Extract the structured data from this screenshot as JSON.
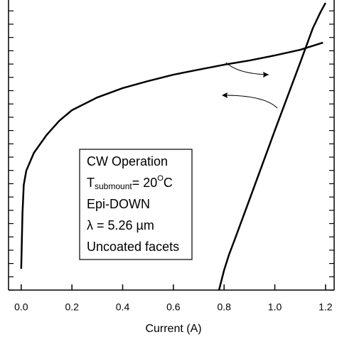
{
  "chart_data": {
    "type": "line",
    "x_label": "Current (A)",
    "xlim": [
      -0.05,
      1.234
    ],
    "xticks": [
      {
        "value": 0,
        "label": "0.0"
      },
      0.2,
      0.4,
      0.6,
      0.8,
      {
        "value": 1,
        "label": "1.0"
      },
      1.2
    ],
    "ylim": [
      0,
      22
    ],
    "yticks": [
      0,
      1,
      2,
      3,
      4,
      5,
      6,
      7,
      8,
      9,
      10,
      11,
      12,
      13,
      14,
      15,
      16,
      17,
      18,
      19,
      20,
      21
    ],
    "y2lim": [
      0,
      22
    ],
    "y2ticks": [
      0,
      1,
      2,
      3,
      4,
      5,
      6,
      7,
      8,
      9,
      10,
      11,
      12,
      13,
      14,
      15,
      16,
      17,
      18,
      19,
      20,
      21
    ],
    "series": [
      {
        "color": "#000000",
        "x": [
          0.0,
          0.005,
          0.01,
          0.02,
          0.05,
          0.1,
          0.15,
          0.2,
          0.3,
          0.4,
          0.5,
          0.6,
          0.7,
          0.8,
          0.9,
          1.0,
          1.1,
          1.19
        ],
        "values": [
          1.6,
          5.78,
          7.91,
          8.98,
          10.32,
          11.66,
          12.73,
          13.53,
          14.49,
          15.19,
          15.72,
          16.2,
          16.58,
          16.95,
          17.27,
          17.65,
          18.07,
          18.61
        ]
      },
      {
        "color": "#000000",
        "axis": "y2",
        "x": [
          0.78,
          0.8,
          0.82,
          0.84,
          0.9,
          1.0,
          1.1,
          1.15,
          1.18,
          1.2
        ],
        "values": [
          0,
          1.5,
          2.7,
          3.7,
          6.8,
          12.0,
          17.1,
          19.7,
          20.9,
          21.6
        ]
      }
    ],
    "annotations": [
      "CW Operation",
      {
        "main": "T",
        "sub": "submount",
        "text": "= 20",
        "sup": "O",
        "unit": "C"
      },
      "Epi-DOWN",
      "λ = 5.26 µm",
      "Uncoated facets"
    ]
  }
}
